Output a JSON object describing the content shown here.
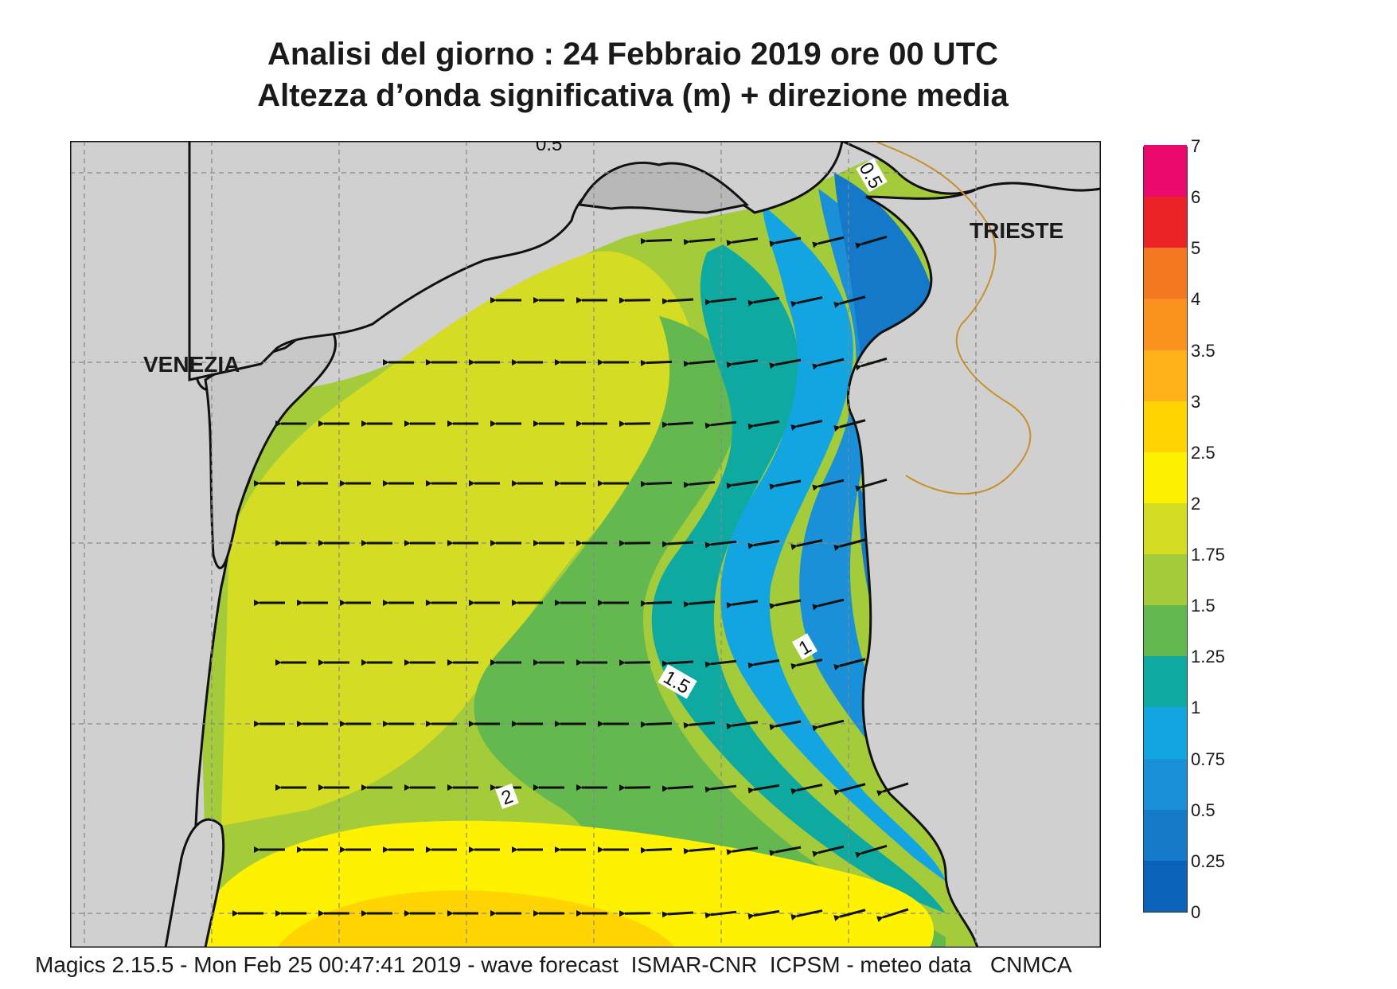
{
  "title_line1": "Analisi del giorno :  24  Febbraio 2019   ore 00 UTC",
  "title_line2": "Altezza d’onda significativa (m) + direzione media",
  "top_partial_label": "0.5",
  "cities": {
    "venezia": "VENEZIA",
    "trieste": "TRIESTE"
  },
  "contour_labels": [
    "0.5",
    "1",
    "1.5",
    "2"
  ],
  "colorbar": {
    "levels": [
      "0",
      "0.25",
      "0.5",
      "0.75",
      "1",
      "1.25",
      "1.5",
      "1.75",
      "2",
      "2.5",
      "3",
      "3.5",
      "4",
      "5",
      "6",
      "7"
    ],
    "colors": [
      "#0a63b8",
      "#1479c8",
      "#1a90d8",
      "#12a5e2",
      "#0eaaa2",
      "#63b850",
      "#a4cc3a",
      "#d4dc24",
      "#fff200",
      "#ffd400",
      "#ffb21a",
      "#fa921e",
      "#f47822",
      "#ed2226",
      "#ea0a6e"
    ]
  },
  "footer": "Magics 2.15.5 - Mon Feb 25 00:47:41 2019 - wave forecast  ISMAR-CNR  ICPSM - meteo data   CNMCA",
  "chart_data": {
    "type": "heatmap",
    "variable": "Altezza d’onda significativa (m) + direzione media",
    "date": "24 Febbraio 2019",
    "time": "00 UTC",
    "region_labels": [
      "VENEZIA",
      "TRIESTE"
    ],
    "contour_levels": [
      0.5,
      1,
      1.5,
      2
    ],
    "wave_direction": "westward (arrows point toward the Italian coast)",
    "height_gradient": "≈0.25–0.75 m along the eastern (Istrian) coast, 1–1.5 m mid-basin, 1.5–2 m near Venezia, 2–2.5 m in the southern part"
  }
}
